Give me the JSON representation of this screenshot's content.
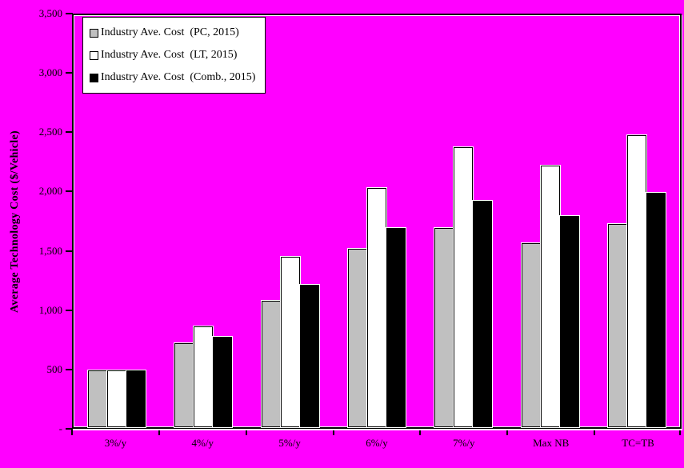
{
  "colors": {
    "page_background": "#FF00FF",
    "plot_border": "#000000",
    "legend_background": "#FFFFFF",
    "text": "#000000"
  },
  "chart_data": {
    "type": "bar",
    "title": "",
    "xlabel": "",
    "ylabel": "Average Technology Cost ($/Vehicle)",
    "ylim": [
      0,
      3500
    ],
    "ytick_interval": 500,
    "grid": false,
    "legend_position": "top-left-inside",
    "plot_background": "#FF00FF",
    "categories": [
      "3%/y",
      "4%/y",
      "5%/y",
      "6%/y",
      "7%/y",
      "Max NB",
      "TC=TB"
    ],
    "yticks": [
      {
        "value": 0,
        "label": "-"
      },
      {
        "value": 500,
        "label": "500"
      },
      {
        "value": 1000,
        "label": "1,000"
      },
      {
        "value": 1500,
        "label": "1,500"
      },
      {
        "value": 2000,
        "label": "2,000"
      },
      {
        "value": 2500,
        "label": "2,500"
      },
      {
        "value": 3000,
        "label": "3,000"
      },
      {
        "value": 3500,
        "label": "3,500"
      }
    ],
    "series": [
      {
        "name": "Industry Ave. Cost  (PC, 2015)",
        "color": "#C0C0C0",
        "values": [
          480,
          715,
          1075,
          1515,
          1690,
          1565,
          1725
        ]
      },
      {
        "name": "Industry Ave. Cost  (LT, 2015)",
        "color": "#FFFFFF",
        "values": [
          480,
          855,
          1450,
          2035,
          2380,
          2225,
          2480
        ]
      },
      {
        "name": "Industry Ave. Cost  (Comb., 2015)",
        "color": "#000000",
        "values": [
          480,
          770,
          1210,
          1695,
          1920,
          1795,
          1990
        ]
      }
    ]
  }
}
